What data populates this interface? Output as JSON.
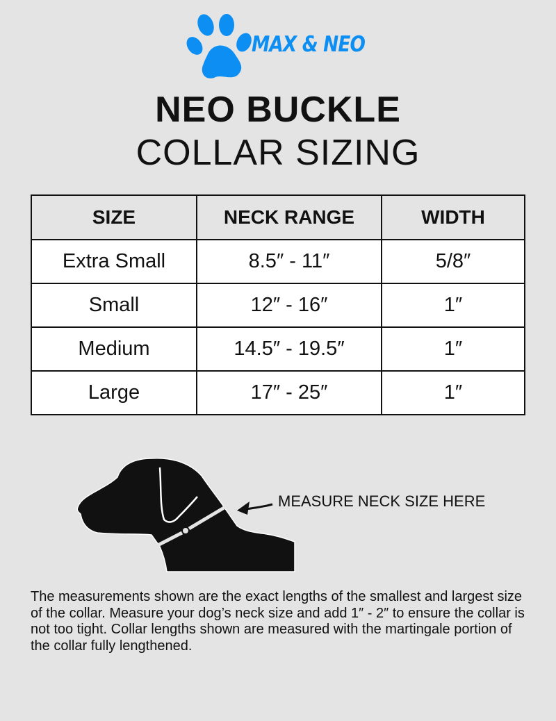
{
  "brand": {
    "name": "MAX & NEO",
    "color": "#0d8ef2",
    "icon": "paw-icon"
  },
  "title": {
    "line1": "NEO BUCKLE",
    "line2": "COLLAR SIZING"
  },
  "table": {
    "headers": [
      "SIZE",
      "NECK RANGE",
      "WIDTH"
    ],
    "rows": [
      [
        "Extra Small",
        "8.5″ - 11″",
        "5/8″"
      ],
      [
        "Small",
        "12″ - 16″",
        "1″"
      ],
      [
        "Medium",
        "14.5″ - 19.5″",
        "1″"
      ],
      [
        "Large",
        "17″ - 25″",
        "1″"
      ]
    ]
  },
  "diagram": {
    "label": "MEASURE NECK SIZE HERE",
    "icon": "dog-silhouette-icon"
  },
  "note": "The measurements shown are the exact lengths of the smallest and largest size of the collar. Measure your dog’s neck size and add 1″ - 2″ to ensure the collar is not too tight. Collar lengths shown are measured with the martingale portion of the collar fully lengthened."
}
